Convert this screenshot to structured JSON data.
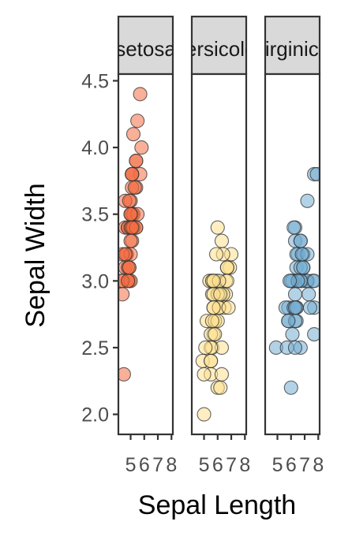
{
  "chart_data": {
    "type": "scatter",
    "xlabel": "Sepal Length",
    "ylabel": "Sepal Width",
    "ylim": [
      1.85,
      4.55
    ],
    "xlim": [
      4.1,
      8.1
    ],
    "yticks": [
      "2.0",
      "2.5",
      "3.0",
      "3.5",
      "4.0",
      "4.5"
    ],
    "xticks": [
      "5",
      "6",
      "7",
      "8"
    ],
    "legend": "none",
    "grid": false,
    "panel_background": "#ffffff",
    "strip_fill": "#d9d9d9",
    "facets": [
      {
        "label": "setosa",
        "color": "#f46d43",
        "points": [
          [
            5.1,
            3.5
          ],
          [
            4.9,
            3.0
          ],
          [
            4.7,
            3.2
          ],
          [
            4.6,
            3.1
          ],
          [
            5.0,
            3.6
          ],
          [
            5.4,
            3.9
          ],
          [
            4.6,
            3.4
          ],
          [
            5.0,
            3.4
          ],
          [
            4.4,
            2.9
          ],
          [
            4.9,
            3.1
          ],
          [
            5.4,
            3.7
          ],
          [
            4.8,
            3.4
          ],
          [
            4.8,
            3.0
          ],
          [
            4.3,
            3.0
          ],
          [
            5.8,
            4.0
          ],
          [
            5.7,
            4.4
          ],
          [
            5.4,
            3.9
          ],
          [
            5.1,
            3.5
          ],
          [
            5.7,
            3.8
          ],
          [
            5.1,
            3.8
          ],
          [
            5.4,
            3.4
          ],
          [
            5.1,
            3.7
          ],
          [
            4.6,
            3.6
          ],
          [
            5.1,
            3.3
          ],
          [
            4.8,
            3.4
          ],
          [
            5.0,
            3.0
          ],
          [
            5.0,
            3.4
          ],
          [
            5.2,
            3.5
          ],
          [
            5.2,
            3.4
          ],
          [
            4.7,
            3.2
          ],
          [
            4.8,
            3.1
          ],
          [
            5.4,
            3.4
          ],
          [
            5.2,
            4.1
          ],
          [
            5.5,
            4.2
          ],
          [
            4.9,
            3.1
          ],
          [
            5.0,
            3.2
          ],
          [
            5.5,
            3.5
          ],
          [
            4.9,
            3.6
          ],
          [
            4.4,
            3.0
          ],
          [
            5.1,
            3.4
          ],
          [
            5.0,
            3.5
          ],
          [
            4.5,
            2.3
          ],
          [
            4.4,
            3.2
          ],
          [
            5.0,
            3.5
          ],
          [
            5.1,
            3.8
          ],
          [
            4.8,
            3.0
          ],
          [
            5.1,
            3.8
          ],
          [
            4.6,
            3.2
          ],
          [
            5.3,
            3.7
          ],
          [
            5.0,
            3.3
          ]
        ]
      },
      {
        "label": "versicolor",
        "color": "#fee090",
        "points": [
          [
            7.0,
            3.2
          ],
          [
            6.4,
            3.2
          ],
          [
            6.9,
            3.1
          ],
          [
            5.5,
            2.3
          ],
          [
            6.5,
            2.8
          ],
          [
            5.7,
            2.8
          ],
          [
            6.3,
            3.3
          ],
          [
            4.9,
            2.4
          ],
          [
            6.6,
            2.9
          ],
          [
            5.2,
            2.7
          ],
          [
            5.0,
            2.0
          ],
          [
            5.9,
            3.0
          ],
          [
            6.0,
            2.2
          ],
          [
            6.1,
            2.9
          ],
          [
            5.6,
            2.9
          ],
          [
            6.7,
            3.1
          ],
          [
            5.6,
            3.0
          ],
          [
            5.8,
            2.7
          ],
          [
            6.2,
            2.2
          ],
          [
            5.6,
            2.5
          ],
          [
            5.9,
            3.2
          ],
          [
            6.1,
            2.8
          ],
          [
            6.3,
            2.5
          ],
          [
            6.1,
            2.8
          ],
          [
            6.4,
            2.9
          ],
          [
            6.6,
            3.0
          ],
          [
            6.8,
            2.8
          ],
          [
            6.7,
            3.0
          ],
          [
            6.0,
            2.9
          ],
          [
            5.7,
            2.6
          ],
          [
            5.5,
            2.4
          ],
          [
            5.5,
            2.4
          ],
          [
            5.8,
            2.7
          ],
          [
            6.0,
            2.7
          ],
          [
            5.4,
            3.0
          ],
          [
            6.0,
            3.4
          ],
          [
            6.7,
            3.1
          ],
          [
            6.3,
            2.3
          ],
          [
            5.6,
            3.0
          ],
          [
            5.5,
            2.5
          ],
          [
            5.5,
            2.6
          ],
          [
            6.1,
            3.0
          ],
          [
            5.8,
            2.6
          ],
          [
            5.0,
            2.3
          ],
          [
            5.6,
            2.7
          ],
          [
            5.7,
            3.0
          ],
          [
            5.7,
            2.9
          ],
          [
            6.2,
            2.9
          ],
          [
            5.1,
            2.5
          ],
          [
            5.7,
            2.8
          ]
        ]
      },
      {
        "label": "virginica",
        "color": "#74add1",
        "points": [
          [
            6.3,
            3.3
          ],
          [
            5.8,
            2.7
          ],
          [
            7.1,
            3.0
          ],
          [
            6.3,
            2.9
          ],
          [
            6.5,
            3.0
          ],
          [
            7.6,
            3.0
          ],
          [
            4.9,
            2.5
          ],
          [
            7.3,
            2.9
          ],
          [
            6.7,
            2.5
          ],
          [
            7.2,
            3.6
          ],
          [
            6.5,
            3.2
          ],
          [
            6.4,
            2.7
          ],
          [
            6.8,
            3.0
          ],
          [
            5.7,
            2.5
          ],
          [
            5.8,
            2.8
          ],
          [
            6.4,
            3.2
          ],
          [
            6.5,
            3.0
          ],
          [
            7.7,
            3.8
          ],
          [
            7.7,
            2.6
          ],
          [
            6.0,
            2.2
          ],
          [
            6.9,
            3.2
          ],
          [
            5.6,
            2.8
          ],
          [
            7.7,
            2.8
          ],
          [
            6.3,
            2.7
          ],
          [
            6.7,
            3.3
          ],
          [
            7.2,
            3.2
          ],
          [
            6.2,
            2.8
          ],
          [
            6.1,
            3.0
          ],
          [
            6.4,
            2.8
          ],
          [
            7.2,
            3.0
          ],
          [
            7.4,
            2.8
          ],
          [
            7.9,
            3.8
          ],
          [
            6.4,
            2.8
          ],
          [
            6.3,
            2.8
          ],
          [
            6.1,
            2.6
          ],
          [
            7.7,
            3.0
          ],
          [
            6.3,
            3.4
          ],
          [
            6.4,
            3.1
          ],
          [
            6.0,
            3.0
          ],
          [
            6.9,
            3.1
          ],
          [
            6.7,
            3.1
          ],
          [
            6.9,
            3.1
          ],
          [
            5.8,
            2.7
          ],
          [
            6.8,
            3.2
          ],
          [
            6.7,
            3.3
          ],
          [
            6.7,
            3.0
          ],
          [
            6.3,
            2.5
          ],
          [
            6.5,
            3.0
          ],
          [
            6.2,
            3.4
          ],
          [
            5.9,
            3.0
          ]
        ]
      }
    ]
  }
}
